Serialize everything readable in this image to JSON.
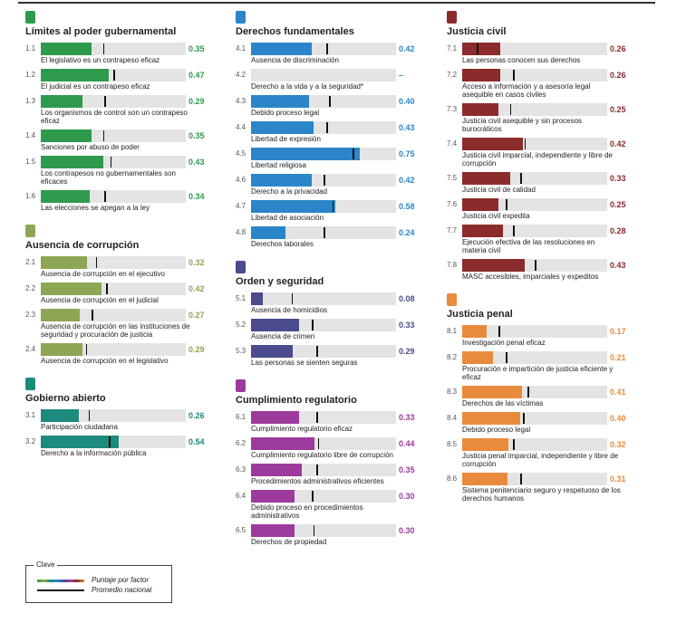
{
  "factors": [
    {
      "title": "Límites al poder gubernamental",
      "color": "#2f9a4c",
      "items": [
        {
          "id": "1.1",
          "label": "El legislativo es un contrapeso eficaz",
          "value": 0.35,
          "national_average": 0.43
        },
        {
          "id": "1.2",
          "label": "El judicial es un contrapeso eficaz",
          "value": 0.47,
          "national_average": 0.5
        },
        {
          "id": "1.3",
          "label": "Los organismos de control son un contrapeso eficaz",
          "value": 0.29,
          "national_average": 0.44
        },
        {
          "id": "1.4",
          "label": "Sanciones por abuso de poder",
          "value": 0.35,
          "national_average": 0.43
        },
        {
          "id": "1.5",
          "label": "Los contrapesos no gubernamentales son eficaces",
          "value": 0.43,
          "national_average": 0.48
        },
        {
          "id": "1.6",
          "label": "Las elecciones se apegan a la ley",
          "value": 0.34,
          "national_average": 0.44
        }
      ]
    },
    {
      "title": "Ausencia de corrupción",
      "color": "#8da654",
      "items": [
        {
          "id": "2.1",
          "label": "Ausencia de corrupción en el ejecutivo",
          "value": 0.32,
          "national_average": 0.38
        },
        {
          "id": "2.2",
          "label": "Ausencia de corrupción en el judicial",
          "value": 0.42,
          "national_average": 0.45
        },
        {
          "id": "2.3",
          "label": "Ausencia de corrupción en las instituciones de seguridad y procuración de justicia",
          "value": 0.27,
          "national_average": 0.35
        },
        {
          "id": "2.4",
          "label": "Ausencia de corrupción en el legislativo",
          "value": 0.29,
          "national_average": 0.31
        }
      ]
    },
    {
      "title": "Gobierno abierto",
      "color": "#1c8a7c",
      "items": [
        {
          "id": "3.1",
          "label": "Participación ciudadana",
          "value": 0.26,
          "national_average": 0.33
        },
        {
          "id": "3.2",
          "label": "Derecho a la información pública",
          "value": 0.54,
          "national_average": 0.47
        }
      ]
    },
    {
      "title": "Derechos fundamentales",
      "color": "#2b86c9",
      "items": [
        {
          "id": "4.1",
          "label": "Ausencia de discriminación",
          "value": 0.42,
          "national_average": 0.52
        },
        {
          "id": "4.2",
          "label": "Derecho a la vida y a la seguridad*",
          "value": null,
          "value_label": "–",
          "national_average": null
        },
        {
          "id": "4.3",
          "label": "Debido proceso legal",
          "value": 0.4,
          "value_label": "0.40",
          "national_average": 0.54
        },
        {
          "id": "4.4",
          "label": "Libertad de expresión",
          "value": 0.43,
          "national_average": 0.52
        },
        {
          "id": "4.5",
          "label": "Libertad religiosa",
          "value": 0.75,
          "national_average": 0.7
        },
        {
          "id": "4.6",
          "label": "Derecho a la privacidad",
          "value": 0.42,
          "national_average": 0.5
        },
        {
          "id": "4.7",
          "label": "Libertad de asociación",
          "value": 0.58,
          "national_average": 0.56
        },
        {
          "id": "4.8",
          "label": "Derechos laborales",
          "value": 0.24,
          "national_average": 0.5
        }
      ]
    },
    {
      "title": "Orden y seguridad",
      "color": "#4b4b8e",
      "items": [
        {
          "id": "5.1",
          "label": "Ausencia de homicidios",
          "value": 0.08,
          "national_average": 0.28
        },
        {
          "id": "5.2",
          "label": "Ausencia de crimen",
          "value": 0.33,
          "national_average": 0.42
        },
        {
          "id": "5.3",
          "label": "Las personas se sienten seguras",
          "value": 0.29,
          "national_average": 0.45
        }
      ]
    },
    {
      "title": "Cumplimiento regulatorio",
      "color": "#9c3b9c",
      "items": [
        {
          "id": "6.1",
          "label": "Cumplimiento regulatorio eficaz",
          "value": 0.33,
          "national_average": 0.45
        },
        {
          "id": "6.2",
          "label": "Cumplimiento regulatorio libre de corrupción",
          "value": 0.44,
          "national_average": 0.46
        },
        {
          "id": "6.3",
          "label": "Procedimientos administrativos eficientes",
          "value": 0.35,
          "national_average": 0.45
        },
        {
          "id": "6.4",
          "label": "Debido proceso en procedimientos administrativos",
          "value": 0.3,
          "value_label": "0.30",
          "national_average": 0.42
        },
        {
          "id": "6.5",
          "label": "Derechos de propiedad",
          "value": 0.3,
          "value_label": "0.30",
          "national_average": 0.43
        }
      ]
    },
    {
      "title": "Justicia civil",
      "color": "#8c2b2b",
      "items": [
        {
          "id": "7.1",
          "label": "Las personas conocen sus derechos",
          "value": 0.26,
          "national_average": 0.1
        },
        {
          "id": "7.2",
          "label": "Acceso a información y a asesoría legal asequible en casos civiles",
          "value": 0.26,
          "national_average": 0.35
        },
        {
          "id": "7.3",
          "label": "Justicia civil asequible y sin procesos burocráticos",
          "value": 0.25,
          "national_average": 0.33
        },
        {
          "id": "7.4",
          "label": "Justicia civil imparcial, independiente y libre de corrupción",
          "value": 0.42,
          "national_average": 0.43
        },
        {
          "id": "7.5",
          "label": "Justicia civil de calidad",
          "value": 0.33,
          "national_average": 0.4
        },
        {
          "id": "7.6",
          "label": "Justicia civil expedita",
          "value": 0.25,
          "national_average": 0.3
        },
        {
          "id": "7.7",
          "label": "Ejecución efectiva de las resoluciones en materia civil",
          "value": 0.28,
          "national_average": 0.35
        },
        {
          "id": "7.8",
          "label": "MASC accesibles, imparciales y expeditos",
          "value": 0.43,
          "national_average": 0.5
        }
      ]
    },
    {
      "title": "Justicia penal",
      "color": "#e98b3c",
      "items": [
        {
          "id": "8.1",
          "label": "Investigación penal eficaz",
          "value": 0.17,
          "national_average": 0.25
        },
        {
          "id": "8.2",
          "label": "Procuración e impartición de justicia eficiente y eficaz",
          "value": 0.21,
          "national_average": 0.3
        },
        {
          "id": "8.3",
          "label": "Derechos de las víctimas",
          "value": 0.41,
          "national_average": 0.45
        },
        {
          "id": "8.4",
          "label": "Debido proceso legal",
          "value": 0.4,
          "value_label": "0.40",
          "national_average": 0.42
        },
        {
          "id": "8.5",
          "label": "Justicia penal imparcial, independiente y libre de corrupción",
          "value": 0.32,
          "national_average": 0.35
        },
        {
          "id": "8.6",
          "label": "Sistema penitenciario seguro y respetuoso de los derechos humanos",
          "value": 0.31,
          "national_average": 0.4
        }
      ]
    }
  ],
  "legend": {
    "title": "Clave",
    "score": "Puntaje por factor",
    "average": "Promedio nacional"
  }
}
